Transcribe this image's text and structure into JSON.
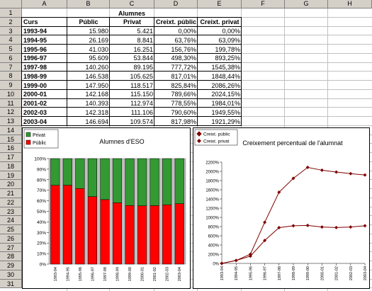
{
  "columns": [
    "A",
    "B",
    "C",
    "D",
    "E",
    "F",
    "G",
    "H"
  ],
  "rows": [
    "1",
    "2",
    "3",
    "4",
    "5",
    "6",
    "7",
    "8",
    "9",
    "10",
    "11",
    "12",
    "13",
    "14",
    "15",
    "16",
    "17",
    "18",
    "19",
    "20",
    "21",
    "22",
    "23",
    "24",
    "25",
    "26",
    "27",
    "28",
    "29",
    "30",
    "31"
  ],
  "table": {
    "title": "Alumnes",
    "headers": [
      "Curs",
      "Públic",
      "Privat",
      "Creixt. públic",
      "Creixt. privat"
    ],
    "rows": [
      [
        "1993-94",
        "15.980",
        "5.421",
        "0,00%",
        "0,00%"
      ],
      [
        "1994-95",
        "26.169",
        "8.841",
        "63,76%",
        "63,09%"
      ],
      [
        "1995-96",
        "41.030",
        "16.251",
        "156,76%",
        "199,78%"
      ],
      [
        "1996-97",
        "95.609",
        "53.844",
        "498,30%",
        "893,25%"
      ],
      [
        "1997-98",
        "140.260",
        "89.195",
        "777,72%",
        "1545,38%"
      ],
      [
        "1998-99",
        "146.538",
        "105.625",
        "817,01%",
        "1848,44%"
      ],
      [
        "1999-00",
        "147.950",
        "118.517",
        "825,84%",
        "2086,26%"
      ],
      [
        "2000-01",
        "142.168",
        "115.150",
        "789,66%",
        "2024,15%"
      ],
      [
        "2001-02",
        "140.393",
        "112.974",
        "778,55%",
        "1984,01%"
      ],
      [
        "2002-03",
        "142.318",
        "111.106",
        "790,60%",
        "1949,55%"
      ],
      [
        "2003-04",
        "146.694",
        "109.574",
        "817,98%",
        "1921,29%"
      ]
    ]
  },
  "chart_data": [
    {
      "type": "bar",
      "title": "Alumnes d'ESO",
      "stacked_percent": true,
      "legend": [
        "Privat",
        "Públic"
      ],
      "colors": {
        "Privat": "#339933",
        "Públic": "#ff0000"
      },
      "categories": [
        "1993-94",
        "1994-95",
        "1995-96",
        "1996-97",
        "1997-98",
        "1998-99",
        "1999-00",
        "2000-01",
        "2001-02",
        "2002-03",
        "2003-04"
      ],
      "series": [
        {
          "name": "Públic",
          "values": [
            15980,
            26169,
            41030,
            95609,
            140260,
            146538,
            147950,
            142168,
            140393,
            142318,
            146694
          ]
        },
        {
          "name": "Privat",
          "values": [
            5421,
            8841,
            16251,
            53844,
            89195,
            105625,
            118517,
            115150,
            112974,
            111106,
            109574
          ]
        }
      ],
      "yticks": [
        "0%",
        "10%",
        "20%",
        "30%",
        "40%",
        "50%",
        "60%",
        "70%",
        "80%",
        "90%",
        "100%"
      ],
      "ylim": [
        0,
        100
      ]
    },
    {
      "type": "line",
      "title": "Creixement percentual de l'alumnat",
      "legend": [
        "Creixt. públic",
        "Creixt. privat"
      ],
      "colors": {
        "line": "#800000"
      },
      "categories": [
        "1993-94",
        "1994-95",
        "1995-96",
        "1996-97",
        "1997-98",
        "1998-99",
        "1999-00",
        "2000-01",
        "2001-02",
        "2002-03",
        "2003-04"
      ],
      "series": [
        {
          "name": "Creixt. públic",
          "values": [
            0,
            63.76,
            156.76,
            498.3,
            777.72,
            817.01,
            825.84,
            789.66,
            778.55,
            790.6,
            817.98
          ]
        },
        {
          "name": "Creixt. privat",
          "values": [
            0,
            63.09,
            199.78,
            893.25,
            1545.38,
            1848.44,
            2086.26,
            2024.15,
            1984.01,
            1949.55,
            1921.29
          ]
        }
      ],
      "yticks": [
        "0%",
        "200%",
        "400%",
        "600%",
        "800%",
        "1000%",
        "1200%",
        "1400%",
        "1600%",
        "1800%",
        "2000%",
        "2200%"
      ],
      "ylim": [
        0,
        2200
      ]
    }
  ]
}
